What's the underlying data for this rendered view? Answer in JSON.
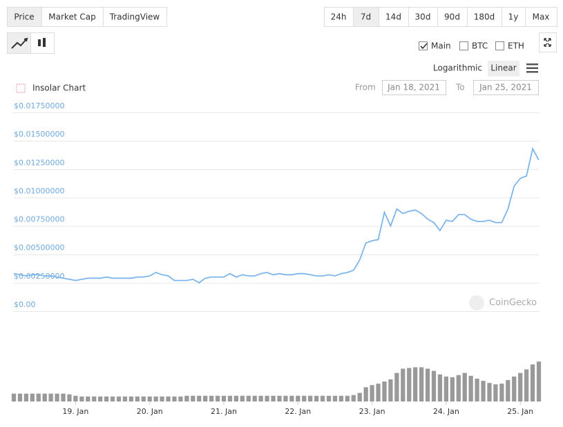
{
  "tabs": [
    "Price",
    "Market Cap",
    "TradingView"
  ],
  "active_tab": 0,
  "ranges": [
    "24h",
    "7d",
    "14d",
    "30d",
    "90d",
    "180d",
    "1y",
    "Max"
  ],
  "active_range": 1,
  "toggles": [
    {
      "label": "Main",
      "checked": true
    },
    {
      "label": "BTC",
      "checked": false
    },
    {
      "label": "ETH",
      "checked": false
    }
  ],
  "scale_options": [
    "Logarithmic",
    "Linear"
  ],
  "active_scale": 1,
  "chart_data": {
    "type": "line",
    "title": "Insolar Chart",
    "from_label": "From",
    "from": "Jan 18, 2021",
    "to_label": "To",
    "to": "Jan 25, 2021",
    "watermark": "CoinGecko",
    "color": "#7cb5ec",
    "volume_color": "#999999",
    "grid": true,
    "ylim": [
      0,
      0.0175
    ],
    "yticks": [
      {
        "value": 0,
        "label": "$0.00"
      },
      {
        "value": 0.0025,
        "label": "$0.00250000"
      },
      {
        "value": 0.005,
        "label": "$0.00500000"
      },
      {
        "value": 0.0075,
        "label": "$0.00750000"
      },
      {
        "value": 0.01,
        "label": "$0.01000000"
      },
      {
        "value": 0.0125,
        "label": "$0.01250000"
      },
      {
        "value": 0.015,
        "label": "$0.01500000"
      },
      {
        "value": 0.0175,
        "label": "$0.01750000"
      }
    ],
    "categories": [
      null,
      null,
      null,
      null,
      null,
      null,
      null,
      null,
      null,
      null,
      "19. Jan",
      null,
      null,
      null,
      null,
      null,
      null,
      null,
      null,
      null,
      null,
      null,
      "20. Jan",
      null,
      null,
      null,
      null,
      null,
      null,
      null,
      null,
      null,
      null,
      null,
      "21. Jan",
      null,
      null,
      null,
      null,
      null,
      null,
      null,
      null,
      null,
      null,
      null,
      "22. Jan",
      null,
      null,
      null,
      null,
      null,
      null,
      null,
      null,
      null,
      null,
      null,
      "23. Jan",
      null,
      null,
      null,
      null,
      null,
      null,
      null,
      null,
      null,
      null,
      null,
      "24. Jan",
      null,
      null,
      null,
      null,
      null,
      null,
      null,
      null,
      null,
      null,
      null,
      "25. Jan",
      null,
      null,
      null
    ],
    "values": [
      0.0033,
      0.0032,
      0.0031,
      0.0032,
      0.0032,
      0.0031,
      0.0031,
      0.003,
      0.0029,
      0.0028,
      0.0027,
      0.0028,
      0.0029,
      0.0029,
      0.0029,
      0.003,
      0.0029,
      0.0029,
      0.0029,
      0.0029,
      0.003,
      0.003,
      0.0031,
      0.0034,
      0.0032,
      0.0031,
      0.0027,
      0.0027,
      0.0027,
      0.0028,
      0.0025,
      0.0029,
      0.003,
      0.003,
      0.003,
      0.0033,
      0.003,
      0.0032,
      0.0031,
      0.0031,
      0.0033,
      0.0034,
      0.0032,
      0.0033,
      0.0032,
      0.0032,
      0.0033,
      0.0033,
      0.0032,
      0.0031,
      0.0031,
      0.0032,
      0.0031,
      0.0033,
      0.0034,
      0.0036,
      0.0045,
      0.006,
      0.0062,
      0.0063,
      0.0087,
      0.0075,
      0.009,
      0.0086,
      0.0088,
      0.0089,
      0.0086,
      0.0081,
      0.0078,
      0.0071,
      0.008,
      0.0079,
      0.0085,
      0.0085,
      0.0081,
      0.0079,
      0.0079,
      0.008,
      0.0078,
      0.0078,
      0.009,
      0.011,
      0.0117,
      0.0119,
      0.0143,
      0.0133
    ],
    "volume_lim": [
      0,
      60
    ],
    "volumes": [
      11,
      11,
      11,
      11,
      11,
      11,
      11,
      11,
      11,
      10,
      8,
      7,
      7,
      7,
      7,
      7,
      7,
      7,
      7,
      7,
      7,
      7,
      7,
      7,
      7,
      7,
      7,
      7,
      8,
      8,
      8,
      8,
      8,
      8,
      8,
      8,
      8,
      8,
      8,
      8,
      8,
      8,
      8,
      8,
      8,
      8,
      8,
      8,
      8,
      8,
      8,
      8,
      8,
      8,
      8,
      9,
      12,
      20,
      23,
      25,
      28,
      31,
      40,
      46,
      47,
      48,
      48,
      46,
      43,
      38,
      35,
      34,
      37,
      40,
      36,
      32,
      29,
      26,
      24,
      25,
      30,
      35,
      40,
      45,
      52,
      56
    ]
  }
}
